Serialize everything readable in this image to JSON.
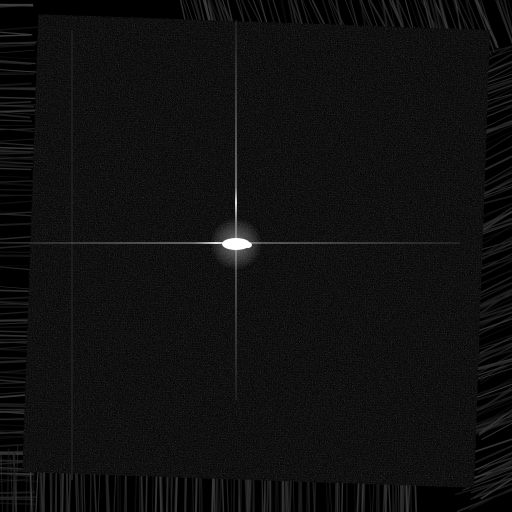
{
  "image": {
    "kind": "fft-magnitude-spectrum",
    "colors": {
      "background": "#000000",
      "noise_light": "#3a3a3a",
      "streak": "#2a2a2a",
      "center_peak": "#ffffff",
      "axis_line": "#8a8a8a"
    }
  }
}
